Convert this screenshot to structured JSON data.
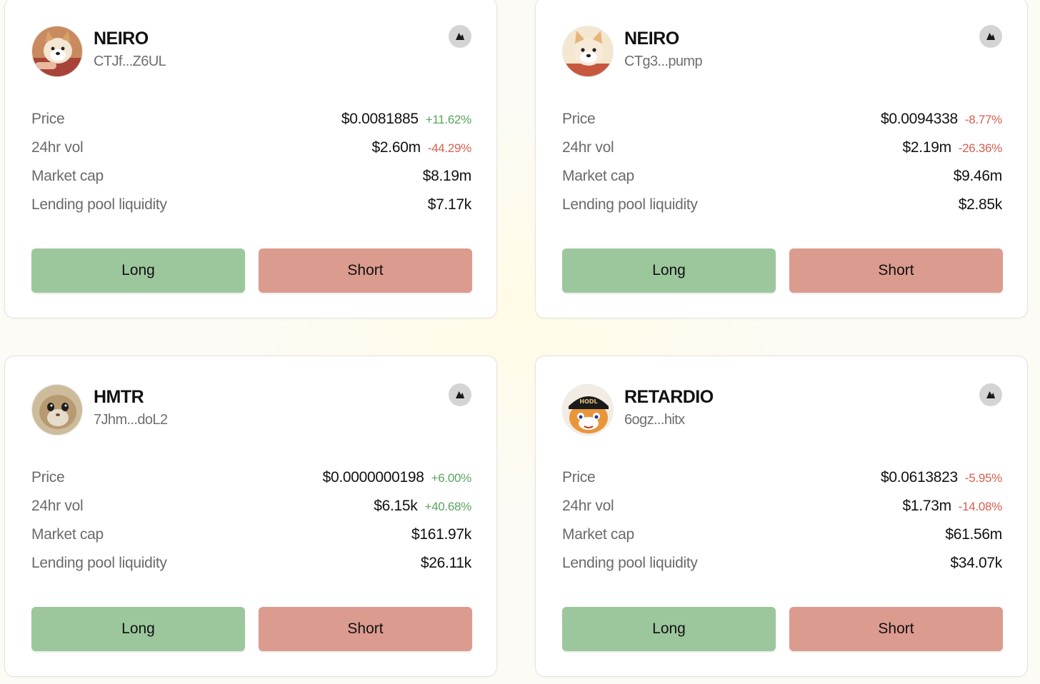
{
  "labels": {
    "price": "Price",
    "vol": "24hr vol",
    "mcap": "Market cap",
    "liquidity": "Lending pool liquidity",
    "long": "Long",
    "short": "Short"
  },
  "colors": {
    "long_button": "#9cc79d",
    "short_button": "#dc9b8f",
    "positive_change": "#5aa45e",
    "negative_change": "#d6604f",
    "corner_icon_bg": "#d4d4d4"
  },
  "cards": [
    {
      "name": "NEIRO",
      "address": "CTJf...Z6UL",
      "avatar": "shiba-dog-avatar",
      "corner_icon": "chart-icon",
      "price": "$0.0081885",
      "price_change": "+11.62%",
      "price_change_dir": "up",
      "vol": "$2.60m",
      "vol_change": "-44.29%",
      "vol_change_dir": "down",
      "mcap": "$8.19m",
      "liquidity": "$7.17k"
    },
    {
      "name": "NEIRO",
      "address": "CTg3...pump",
      "avatar": "shiba-dog-avatar",
      "corner_icon": "chart-icon",
      "price": "$0.0094338",
      "price_change": "-8.77%",
      "price_change_dir": "down",
      "vol": "$2.19m",
      "vol_change": "-26.36%",
      "vol_change_dir": "down",
      "mcap": "$9.46m",
      "liquidity": "$2.85k"
    },
    {
      "name": "HMTR",
      "address": "7Jhm...doL2",
      "avatar": "hamster-avatar",
      "corner_icon": "chart-icon",
      "price": "$0.0000000198",
      "price_change": "+6.00%",
      "price_change_dir": "up",
      "vol": "$6.15k",
      "vol_change": "+40.68%",
      "vol_change_dir": "up",
      "mcap": "$161.97k",
      "liquidity": "$26.11k"
    },
    {
      "name": "RETARDIO",
      "address": "6ogz...hitx",
      "avatar": "hodl-cap-cat-avatar",
      "avatar_text": "HODL",
      "corner_icon": "chart-icon",
      "price": "$0.0613823",
      "price_change": "-5.95%",
      "price_change_dir": "down",
      "vol": "$1.73m",
      "vol_change": "-14.08%",
      "vol_change_dir": "down",
      "mcap": "$61.56m",
      "liquidity": "$34.07k"
    }
  ]
}
